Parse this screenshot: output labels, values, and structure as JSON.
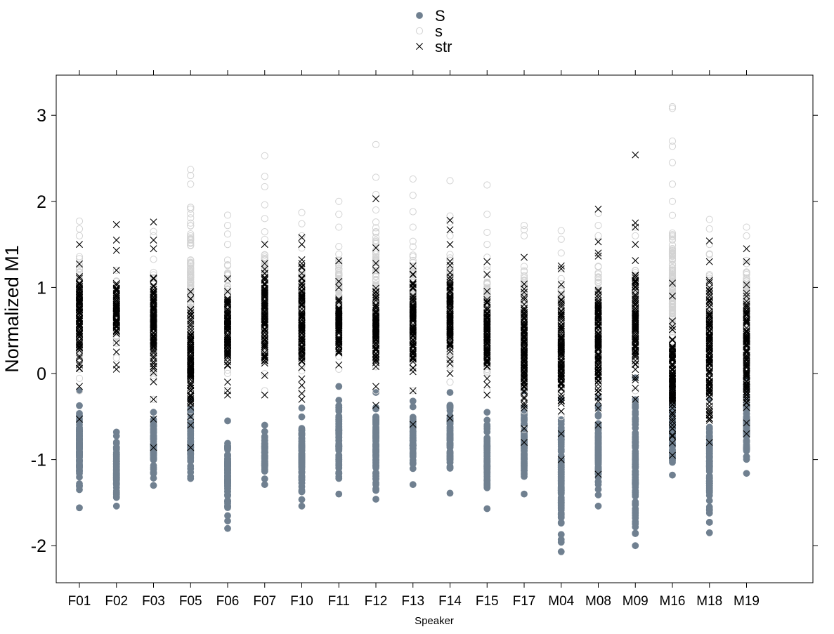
{
  "chart_data": {
    "type": "scatter",
    "title": "",
    "xlabel": "Speaker",
    "ylabel": "Normalized M1",
    "ylim": [
      -2.45,
      3.45
    ],
    "yticks": [
      "-2",
      "-1",
      "0",
      "1",
      "2",
      "3"
    ],
    "legend_position": "top-center",
    "categories": [
      "F01",
      "F02",
      "F03",
      "F05",
      "F06",
      "F07",
      "F10",
      "F11",
      "F12",
      "F13",
      "F14",
      "F15",
      "F17",
      "M04",
      "M08",
      "M09",
      "M16",
      "M18",
      "M19"
    ],
    "series": [
      {
        "name": "S",
        "marker": "filled-circle",
        "color": "#708090",
        "ranges": [
          {
            "min": -1.56,
            "max": -0.2,
            "outliers": []
          },
          {
            "min": -1.54,
            "max": -0.68,
            "outliers": []
          },
          {
            "min": -1.3,
            "max": -0.45,
            "outliers": []
          },
          {
            "min": -1.22,
            "max": -0.3,
            "outliers": []
          },
          {
            "min": -1.8,
            "max": -0.55,
            "outliers": []
          },
          {
            "min": -1.29,
            "max": -0.6,
            "outliers": []
          },
          {
            "min": -1.54,
            "max": -0.4,
            "outliers": []
          },
          {
            "min": -1.4,
            "max": -0.15,
            "outliers": []
          },
          {
            "min": -1.46,
            "max": -0.22,
            "outliers": []
          },
          {
            "min": -1.29,
            "max": -0.32,
            "outliers": []
          },
          {
            "min": -1.39,
            "max": -0.22,
            "outliers": []
          },
          {
            "min": -1.57,
            "max": -0.45,
            "outliers": []
          },
          {
            "min": -1.4,
            "max": -0.2,
            "outliers": []
          },
          {
            "min": -2.07,
            "max": -0.3,
            "outliers": [
              -1.96,
              -1.87
            ]
          },
          {
            "min": -1.54,
            "max": -0.28,
            "outliers": []
          },
          {
            "min": -2.0,
            "max": -0.05,
            "outliers": [
              -1.86
            ]
          },
          {
            "min": -1.18,
            "max": -0.1,
            "outliers": []
          },
          {
            "min": -1.85,
            "max": -0.3,
            "outliers": [
              -1.55
            ]
          },
          {
            "min": -1.16,
            "max": -0.05,
            "outliers": []
          }
        ]
      },
      {
        "name": "s",
        "marker": "open-circle",
        "color": "#d3d3d3",
        "ranges": [
          {
            "min": -0.2,
            "max": 1.6,
            "outliers": [
              1.68,
              1.77
            ]
          },
          {
            "min": 0.18,
            "max": 1.2,
            "outliers": []
          },
          {
            "min": -0.3,
            "max": 1.5,
            "outliers": [
              1.6,
              1.65
            ]
          },
          {
            "min": -0.5,
            "max": 2.2,
            "outliers": [
              2.3,
              2.37
            ]
          },
          {
            "min": -0.2,
            "max": 1.5,
            "outliers": [
              1.62,
              1.72,
              1.84
            ]
          },
          {
            "min": -0.2,
            "max": 1.8,
            "outliers": [
              1.96,
              2.17,
              2.29,
              2.53
            ]
          },
          {
            "min": -0.2,
            "max": 1.6,
            "outliers": [
              1.74,
              1.87
            ]
          },
          {
            "min": 0.05,
            "max": 1.7,
            "outliers": [
              1.85,
              2.0
            ]
          },
          {
            "min": -0.2,
            "max": 1.9,
            "outliers": [
              2.08,
              2.28,
              2.66
            ]
          },
          {
            "min": -0.2,
            "max": 1.7,
            "outliers": [
              1.88,
              2.07,
              2.26
            ]
          },
          {
            "min": -0.1,
            "max": 1.6,
            "outliers": [
              1.76,
              1.83,
              2.24
            ]
          },
          {
            "min": -0.2,
            "max": 1.5,
            "outliers": [
              1.64,
              1.85,
              2.19
            ]
          },
          {
            "min": -0.65,
            "max": 1.6,
            "outliers": [
              1.67,
              1.72
            ]
          },
          {
            "min": -0.5,
            "max": 1.4,
            "outliers": [
              1.56,
              1.66
            ]
          },
          {
            "min": -0.3,
            "max": 1.6,
            "outliers": [
              1.72,
              1.86
            ]
          },
          {
            "min": -0.2,
            "max": 1.6,
            "outliers": [
              1.7
            ]
          },
          {
            "min": -0.1,
            "max": 2.0,
            "outliers": [
              2.2,
              2.45,
              2.64,
              2.7,
              3.08,
              3.1
            ]
          },
          {
            "min": -0.3,
            "max": 1.5,
            "outliers": [
              1.68,
              1.79
            ]
          },
          {
            "min": -0.3,
            "max": 1.6,
            "outliers": [
              1.7
            ]
          }
        ]
      },
      {
        "name": "str",
        "marker": "x",
        "color": "#000000",
        "ranges": [
          {
            "min": -0.15,
            "max": 1.5,
            "outliers": [
              -0.53
            ]
          },
          {
            "min": 0.25,
            "max": 1.2,
            "outliers": [
              0.05,
              0.1,
              1.43,
              1.55,
              1.73
            ]
          },
          {
            "min": -0.3,
            "max": 1.45,
            "outliers": [
              -0.53,
              -0.86,
              1.55,
              1.76
            ]
          },
          {
            "min": -0.6,
            "max": 0.95,
            "outliers": [
              -0.86
            ]
          },
          {
            "min": -0.1,
            "max": 1.1,
            "outliers": [
              -0.2,
              -0.25
            ]
          },
          {
            "min": -0.25,
            "max": 1.5,
            "outliers": []
          },
          {
            "min": -0.3,
            "max": 1.5,
            "outliers": [
              1.58
            ]
          },
          {
            "min": 0.1,
            "max": 1.0,
            "outliers": [
              1.07,
              1.31
            ]
          },
          {
            "min": -0.15,
            "max": 1.2,
            "outliers": [
              -0.37,
              1.28,
              1.46,
              2.03
            ]
          },
          {
            "min": -0.2,
            "max": 1.25,
            "outliers": [
              -0.59
            ]
          },
          {
            "min": 0.0,
            "max": 1.5,
            "outliers": [
              -0.52,
              1.67,
              1.78
            ]
          },
          {
            "min": -0.25,
            "max": 1.15,
            "outliers": [
              1.3
            ]
          },
          {
            "min": -0.8,
            "max": 1.35,
            "outliers": []
          },
          {
            "min": -0.7,
            "max": 1.25,
            "outliers": [
              -1.0
            ]
          },
          {
            "min": -0.6,
            "max": 1.4,
            "outliers": [
              -1.17,
              1.53,
              1.91
            ]
          },
          {
            "min": -0.3,
            "max": 1.5,
            "outliers": [
              1.7,
              1.75,
              2.54
            ]
          },
          {
            "min": -0.95,
            "max": 0.9,
            "outliers": [
              1.05
            ]
          },
          {
            "min": -0.8,
            "max": 1.3,
            "outliers": [
              1.54
            ]
          },
          {
            "min": -0.7,
            "max": 1.3,
            "outliers": [
              1.45
            ]
          }
        ]
      }
    ]
  }
}
